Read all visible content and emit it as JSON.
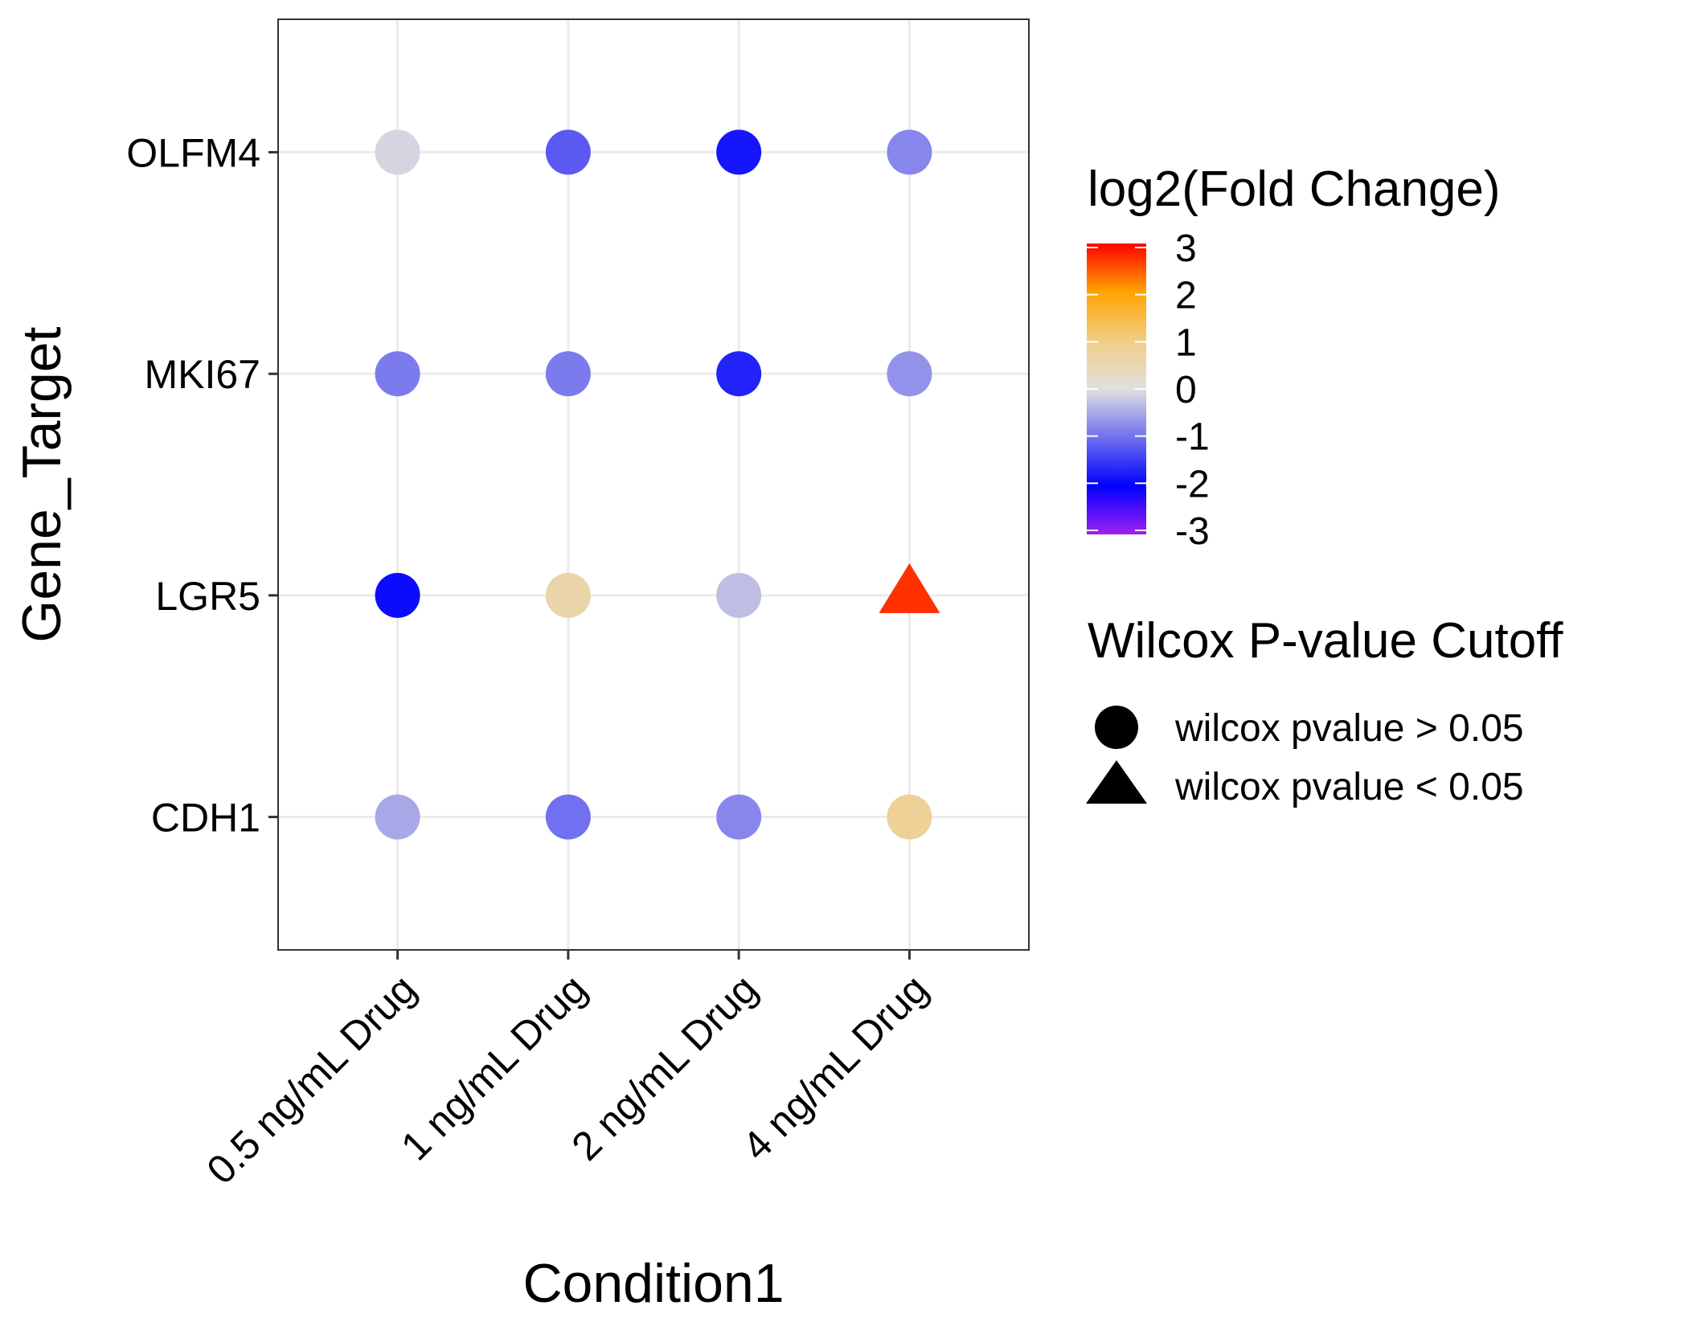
{
  "chart_data": {
    "type": "scatter",
    "xlabel": "Condition1",
    "ylabel": "Gene_Target",
    "x_categories": [
      "0.5 ng/mL Drug",
      "1 ng/mL Drug",
      "2 ng/mL Drug",
      "4 ng/mL Drug"
    ],
    "y_categories": [
      "CDH1",
      "LGR5",
      "MKI67",
      "OLFM4"
    ],
    "grid": true,
    "points": [
      {
        "x": "0.5 ng/mL Drug",
        "y": "OLFM4",
        "value": -0.1,
        "significant": false
      },
      {
        "x": "1 ng/mL Drug",
        "y": "OLFM4",
        "value": -1.2,
        "significant": false
      },
      {
        "x": "2 ng/mL Drug",
        "y": "OLFM4",
        "value": -1.8,
        "significant": false
      },
      {
        "x": "4 ng/mL Drug",
        "y": "OLFM4",
        "value": -0.8,
        "significant": false
      },
      {
        "x": "0.5 ng/mL Drug",
        "y": "MKI67",
        "value": -0.9,
        "significant": false
      },
      {
        "x": "1 ng/mL Drug",
        "y": "MKI67",
        "value": -0.9,
        "significant": false
      },
      {
        "x": "2 ng/mL Drug",
        "y": "MKI67",
        "value": -1.7,
        "significant": false
      },
      {
        "x": "4 ng/mL Drug",
        "y": "MKI67",
        "value": -0.7,
        "significant": false
      },
      {
        "x": "0.5 ng/mL Drug",
        "y": "LGR5",
        "value": -1.9,
        "significant": false
      },
      {
        "x": "1 ng/mL Drug",
        "y": "LGR5",
        "value": 0.6,
        "significant": false
      },
      {
        "x": "2 ng/mL Drug",
        "y": "LGR5",
        "value": -0.3,
        "significant": false
      },
      {
        "x": "4 ng/mL Drug",
        "y": "LGR5",
        "value": 2.7,
        "significant": true
      },
      {
        "x": "0.5 ng/mL Drug",
        "y": "CDH1",
        "value": -0.5,
        "significant": false
      },
      {
        "x": "1 ng/mL Drug",
        "y": "CDH1",
        "value": -1.0,
        "significant": false
      },
      {
        "x": "2 ng/mL Drug",
        "y": "CDH1",
        "value": -0.8,
        "significant": false
      },
      {
        "x": "4 ng/mL Drug",
        "y": "CDH1",
        "value": 0.8,
        "significant": false
      }
    ],
    "color_legend": {
      "title": "log2(Fold Change)",
      "ticks": [
        "3",
        "2",
        "1",
        "0",
        "-1",
        "-2",
        "-3"
      ],
      "range": [
        -3,
        3
      ],
      "stops": [
        {
          "value": -3,
          "color": "#a020f0"
        },
        {
          "value": -2,
          "color": "#0000ff"
        },
        {
          "value": 0,
          "color": "#e0e0e0"
        },
        {
          "value": 1,
          "color": "#f0cd85"
        },
        {
          "value": 2,
          "color": "#ffa500"
        },
        {
          "value": 3,
          "color": "#ff0000"
        }
      ]
    },
    "shape_legend": {
      "title": "Wilcox P-value Cutoff",
      "entries": [
        {
          "label": "wilcox pvalue > 0.05",
          "shape": "circle"
        },
        {
          "label": "wilcox pvalue < 0.05",
          "shape": "triangle"
        }
      ]
    }
  }
}
